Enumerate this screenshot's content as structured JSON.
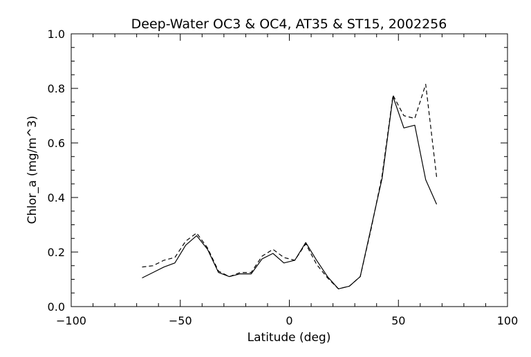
{
  "chart_data": {
    "type": "line",
    "title": "Deep-Water OC3 & OC4, AT35 & ST15, 2002256",
    "xlabel": "Latitude (deg)",
    "ylabel": "Chlor_a (mg/m^3)",
    "xlim": [
      -100,
      100
    ],
    "ylim": [
      0.0,
      1.0
    ],
    "x_ticks": [
      "-100",
      "-50",
      "0",
      "50",
      "100"
    ],
    "y_ticks": [
      "0.0",
      "0.2",
      "0.4",
      "0.6",
      "0.8",
      "1.0"
    ],
    "grid": false,
    "legend": "none",
    "series": [
      {
        "line_style": "solid",
        "color": "#000000",
        "points": [
          [
            -67.5,
            0.105
          ],
          [
            -62.5,
            0.125
          ],
          [
            -57.5,
            0.145
          ],
          [
            -52.5,
            0.16
          ],
          [
            -47.5,
            0.225
          ],
          [
            -42.5,
            0.26
          ],
          [
            -37.5,
            0.21
          ],
          [
            -32.5,
            0.125
          ],
          [
            -27.5,
            0.11
          ],
          [
            -22.5,
            0.12
          ],
          [
            -17.5,
            0.12
          ],
          [
            -12.5,
            0.175
          ],
          [
            -7.5,
            0.195
          ],
          [
            -2.5,
            0.16
          ],
          [
            2.5,
            0.17
          ],
          [
            7.5,
            0.235
          ],
          [
            12.5,
            0.17
          ],
          [
            17.5,
            0.11
          ],
          [
            22.5,
            0.065
          ],
          [
            27.5,
            0.075
          ],
          [
            32.5,
            0.11
          ],
          [
            37.5,
            0.29
          ],
          [
            42.5,
            0.47
          ],
          [
            47.5,
            0.77
          ],
          [
            52.5,
            0.655
          ],
          [
            57.5,
            0.665
          ],
          [
            62.5,
            0.465
          ],
          [
            67.5,
            0.375
          ]
        ]
      },
      {
        "line_style": "dashed",
        "color": "#000000",
        "points": [
          [
            -67.5,
            0.145
          ],
          [
            -62.5,
            0.15
          ],
          [
            -57.5,
            0.17
          ],
          [
            -52.5,
            0.18
          ],
          [
            -47.5,
            0.24
          ],
          [
            -42.5,
            0.27
          ],
          [
            -37.5,
            0.215
          ],
          [
            -32.5,
            0.13
          ],
          [
            -27.5,
            0.11
          ],
          [
            -22.5,
            0.125
          ],
          [
            -17.5,
            0.125
          ],
          [
            -12.5,
            0.185
          ],
          [
            -7.5,
            0.21
          ],
          [
            -2.5,
            0.18
          ],
          [
            2.5,
            0.17
          ],
          [
            7.5,
            0.23
          ],
          [
            12.5,
            0.155
          ],
          [
            17.5,
            0.105
          ],
          [
            22.5,
            0.065
          ],
          [
            27.5,
            0.075
          ],
          [
            32.5,
            0.11
          ],
          [
            37.5,
            0.285
          ],
          [
            42.5,
            0.48
          ],
          [
            47.5,
            0.775
          ],
          [
            52.5,
            0.7
          ],
          [
            57.5,
            0.69
          ],
          [
            62.5,
            0.815
          ],
          [
            67.5,
            0.475
          ]
        ]
      }
    ]
  }
}
